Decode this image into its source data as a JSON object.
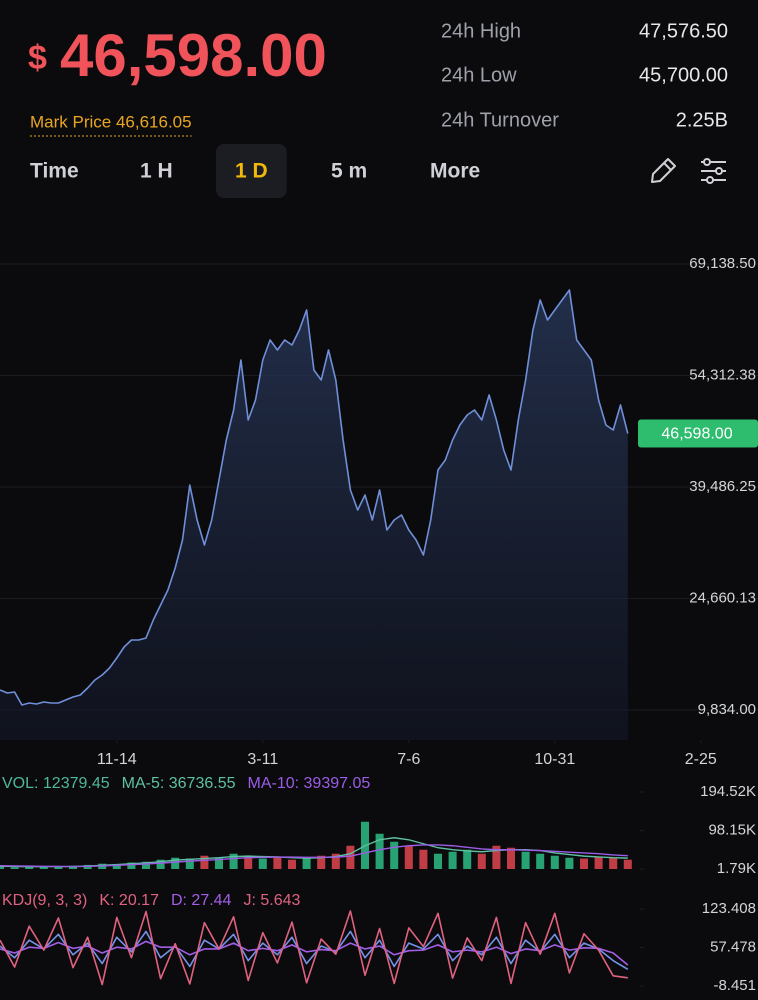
{
  "header": {
    "currency": "$",
    "last_price": "46,598.00",
    "mark_price": "Mark Price 46,616.05",
    "stats": [
      {
        "label": "24h High",
        "value": "47,576.50"
      },
      {
        "label": "24h Low",
        "value": "45,700.00"
      },
      {
        "label": "24h Turnover",
        "value": "2.25B"
      }
    ]
  },
  "tabs": [
    "Time",
    "1 H",
    "1 D",
    "5 m",
    "More"
  ],
  "active_tab": 2,
  "chart_data": [
    {
      "type": "area",
      "color": "#6f8fd8",
      "values": [
        12493,
        12094,
        12227,
        10499,
        10765,
        10632,
        10898,
        10765,
        10765,
        11164,
        11563,
        11829,
        12759,
        13823,
        14488,
        15419,
        16748,
        18211,
        19142,
        19142,
        19408,
        21801,
        23796,
        25790,
        28716,
        32439,
        39752,
        35098,
        31774,
        35098,
        40417,
        45736,
        49725,
        56374,
        48395,
        51055,
        56374,
        59033,
        57703,
        59033,
        58368,
        60363,
        63022,
        55044,
        53714,
        57703,
        53714,
        45736,
        39087,
        36428,
        38423,
        35098,
        39087,
        33769,
        35098,
        35763,
        33769,
        32439,
        30444,
        35098,
        41747,
        43077,
        45736,
        47730,
        49060,
        49725,
        48395,
        51720,
        48395,
        44406,
        41747,
        48395,
        53714,
        60363,
        64352,
        61692,
        63022,
        64352,
        65681,
        59033,
        57703,
        56374,
        51055,
        47730,
        47066,
        50390,
        46598
      ],
      "xlim": [
        0,
        100
      ],
      "xticks": [
        {
          "value": 16,
          "label": "11-14"
        },
        {
          "value": 36,
          "label": "3-11"
        },
        {
          "value": 56,
          "label": "7-6"
        },
        {
          "value": 76,
          "label": "10-31"
        },
        {
          "value": 96,
          "label": "2-25"
        }
      ],
      "ylim": [
        5845,
        76319
      ],
      "yticks": [
        {
          "value": 9834,
          "label": "9,834.00"
        },
        {
          "value": 24660.13,
          "label": "24,660.13"
        },
        {
          "value": 39486.25,
          "label": "39,486.25"
        },
        {
          "value": 54312.38,
          "label": "54,312.38"
        },
        {
          "value": 69138.5,
          "label": "69,138.50"
        }
      ],
      "grid": true,
      "last_value_label": "46,598.00",
      "last_value_color": "#2ebd6e"
    },
    {
      "type": "volume",
      "x": [
        0,
        2,
        4,
        6,
        8,
        10,
        12,
        14,
        16,
        18,
        20,
        22,
        24,
        26,
        28,
        30,
        32,
        34,
        36,
        38,
        40,
        42,
        44,
        46,
        48,
        50,
        52,
        54,
        56,
        58,
        60,
        62,
        64,
        66,
        68,
        70,
        72,
        74,
        76,
        78,
        80,
        82,
        84,
        86
      ],
      "xlim": [
        0,
        100
      ],
      "ylim": [
        1790,
        194520
      ],
      "yticks": [
        {
          "value": 1790,
          "label": "1.79K"
        },
        {
          "value": 98150,
          "label": "98.15K"
        },
        {
          "value": 194520,
          "label": "194.52K"
        }
      ],
      "up_color": "#2ebd85",
      "down_color": "#e0474f",
      "series": [
        {
          "name": "VOL: 12379.45",
          "color": "#4fb89a",
          "kind": "bar",
          "values": [
            8000,
            6000,
            7000,
            9000,
            8000,
            10000,
            12000,
            15000,
            14000,
            18000,
            20000,
            25000,
            30000,
            28000,
            35000,
            30000,
            40000,
            32000,
            28000,
            30000,
            25000,
            30000,
            35000,
            40000,
            60000,
            120000,
            90000,
            70000,
            60000,
            50000,
            40000,
            45000,
            50000,
            40000,
            60000,
            55000,
            45000,
            40000,
            35000,
            30000,
            28000,
            32000,
            30000,
            25000
          ]
        },
        {
          "name": "MA-5: 36736.55",
          "color": "#5fc0a2",
          "kind": "line",
          "values": [
            9000,
            8000,
            7500,
            7600,
            7800,
            8000,
            9000,
            11000,
            13000,
            15000,
            17000,
            20000,
            24000,
            26000,
            28000,
            30000,
            33000,
            34000,
            33000,
            32000,
            30000,
            29000,
            30000,
            33000,
            40000,
            60000,
            75000,
            80000,
            75000,
            65000,
            55000,
            50000,
            47000,
            45000,
            48000,
            50000,
            50000,
            48000,
            42000,
            38000,
            34000,
            32000,
            30000,
            29000
          ]
        },
        {
          "name": "MA-10: 39397.05",
          "color": "#9b5de5",
          "kind": "line",
          "values": [
            10000,
            9500,
            9000,
            8500,
            8200,
            8000,
            8500,
            9500,
            11000,
            12500,
            14500,
            16500,
            19000,
            21500,
            23500,
            25500,
            28000,
            30000,
            31000,
            31500,
            31500,
            31000,
            31000,
            31500,
            34000,
            42000,
            50000,
            56000,
            60000,
            62000,
            62000,
            60000,
            56000,
            52000,
            50000,
            50000,
            49000,
            48000,
            46000,
            44000,
            42000,
            40000,
            37000,
            35000
          ]
        }
      ]
    },
    {
      "type": "kdj",
      "title": "KDJ(9, 3, 3)",
      "x": [
        0,
        2,
        4,
        6,
        8,
        10,
        12,
        14,
        16,
        18,
        20,
        22,
        24,
        26,
        28,
        30,
        32,
        34,
        36,
        38,
        40,
        42,
        44,
        46,
        48,
        50,
        52,
        54,
        56,
        58,
        60,
        62,
        64,
        66,
        68,
        70,
        72,
        74,
        76,
        78,
        80,
        82,
        84,
        86
      ],
      "xlim": [
        0,
        100
      ],
      "ylim": [
        -8.451,
        123.408
      ],
      "yticks": [
        -8.451,
        57.478,
        123.408
      ],
      "series": [
        {
          "name": "K: 20.17",
          "color": "#7592e8",
          "kind": "line",
          "values": [
            60,
            40,
            70,
            55,
            80,
            45,
            65,
            30,
            75,
            50,
            85,
            40,
            60,
            25,
            70,
            55,
            80,
            35,
            65,
            45,
            75,
            30,
            60,
            50,
            85,
            40,
            70,
            25,
            65,
            55,
            80,
            35,
            60,
            45,
            75,
            30,
            70,
            50,
            80,
            40,
            65,
            55,
            35,
            20.17
          ]
        },
        {
          "name": "D: 27.44",
          "color": "#a35ee6",
          "kind": "line",
          "values": [
            55,
            48,
            58,
            56,
            66,
            56,
            60,
            48,
            58,
            55,
            68,
            58,
            58,
            45,
            55,
            55,
            65,
            52,
            56,
            52,
            62,
            50,
            54,
            52,
            65,
            55,
            60,
            45,
            52,
            53,
            62,
            50,
            53,
            50,
            58,
            47,
            55,
            52,
            62,
            53,
            57,
            56,
            48,
            27.44
          ]
        },
        {
          "name": "J: 5.643",
          "color": "#e0627f",
          "kind": "line",
          "values": [
            70,
            24,
            94,
            53,
            108,
            23,
            75,
            -6,
            109,
            40,
            119,
            4,
            64,
            -5,
            100,
            55,
            110,
            1,
            83,
            31,
            101,
            -3,
            72,
            46,
            120,
            10,
            90,
            -4,
            91,
            59,
            116,
            5,
            74,
            35,
            109,
            -4,
            100,
            46,
            116,
            14,
            81,
            53,
            9,
            5.643
          ]
        }
      ]
    }
  ]
}
